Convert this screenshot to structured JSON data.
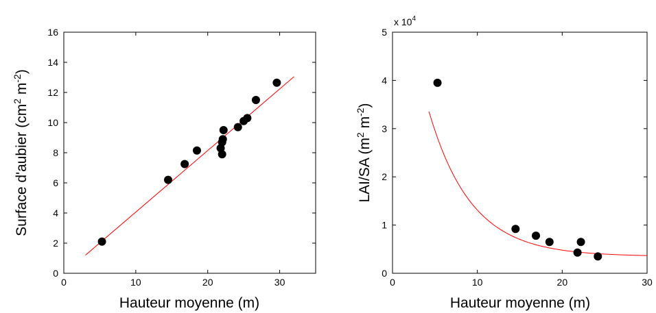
{
  "chart_data": [
    {
      "type": "scatter",
      "xlabel": "Hauteur moyenne (m)",
      "ylabel": {
        "main": "Surface d'aubier (cm",
        "sup1": "2",
        "mid": " m",
        "sup2": "-2",
        "end": ")"
      },
      "xlim": [
        0,
        35
      ],
      "ylim": [
        0,
        16
      ],
      "xticks": [
        0,
        10,
        20,
        30
      ],
      "yticks": [
        0,
        2,
        4,
        6,
        8,
        10,
        12,
        14,
        16
      ],
      "grid": false,
      "points": [
        {
          "x": 5.3,
          "y": 2.1
        },
        {
          "x": 14.5,
          "y": 6.2
        },
        {
          "x": 16.8,
          "y": 7.25
        },
        {
          "x": 18.5,
          "y": 8.15
        },
        {
          "x": 21.8,
          "y": 8.3
        },
        {
          "x": 22.0,
          "y": 8.7
        },
        {
          "x": 22.1,
          "y": 8.9
        },
        {
          "x": 22.0,
          "y": 7.9
        },
        {
          "x": 22.2,
          "y": 9.5
        },
        {
          "x": 24.2,
          "y": 9.7
        },
        {
          "x": 25.0,
          "y": 10.1
        },
        {
          "x": 25.5,
          "y": 10.3
        },
        {
          "x": 26.7,
          "y": 11.5
        },
        {
          "x": 29.6,
          "y": 12.65
        }
      ],
      "fit": {
        "type": "linear",
        "x0": 3.0,
        "y0": 1.2,
        "x1": 32.0,
        "y1": 13.05,
        "color": "#ff0000"
      },
      "marker_color": "#000000"
    },
    {
      "type": "scatter",
      "xlabel": "Hauteur moyenne (m)",
      "ylabel": {
        "main": "LAI/SA (m",
        "sup1": "2",
        "mid": " m",
        "sup2": "-2",
        "end": ")"
      },
      "y_multiplier": {
        "base": "x 10",
        "exp": "4"
      },
      "xlim": [
        0,
        30
      ],
      "ylim": [
        0,
        5
      ],
      "xticks": [
        0,
        10,
        20,
        30
      ],
      "yticks": [
        0,
        1,
        2,
        3,
        4,
        5
      ],
      "grid": false,
      "points": [
        {
          "x": 5.3,
          "y": 3.95
        },
        {
          "x": 14.5,
          "y": 0.92
        },
        {
          "x": 16.9,
          "y": 0.78
        },
        {
          "x": 18.5,
          "y": 0.65
        },
        {
          "x": 21.8,
          "y": 0.43
        },
        {
          "x": 22.2,
          "y": 0.65
        },
        {
          "x": 24.2,
          "y": 0.35
        }
      ],
      "fit": {
        "type": "exponential",
        "A": 7.1,
        "k": 0.2,
        "C": 0.35,
        "xstart": 4.3,
        "xend": 30,
        "color": "#ff0000"
      },
      "marker_color": "#000000"
    }
  ]
}
